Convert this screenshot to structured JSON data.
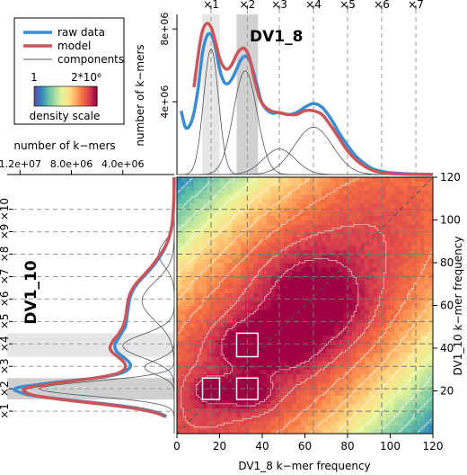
{
  "chart_data": {
    "type": "heatmap",
    "top_panel": {
      "type": "line",
      "title": "DV1_8",
      "ylabel": "number of k−mers",
      "x_range": [
        0,
        120
      ],
      "y_range": [
        0,
        8800000
      ],
      "y_tick_labels": [
        {
          "value": 4000000,
          "label": "4e+06"
        },
        {
          "value": 8000000,
          "label": "8e+06"
        }
      ],
      "multiplicity_labels": [
        {
          "x": 16,
          "label": "×1"
        },
        {
          "x": 33,
          "label": "×2"
        },
        {
          "x": 48,
          "label": "×3"
        },
        {
          "x": 64,
          "label": "×4"
        },
        {
          "x": 80,
          "label": "×5"
        },
        {
          "x": 96,
          "label": "×6"
        },
        {
          "x": 112,
          "label": "×7"
        }
      ],
      "shaded_bands": [
        [
          12,
          20
        ],
        [
          28,
          38
        ]
      ],
      "series": [
        {
          "name": "raw data",
          "color": "#3a8ed0",
          "x": [
            2,
            4,
            6,
            8,
            10,
            12,
            14,
            16,
            18,
            20,
            22,
            24,
            26,
            28,
            30,
            32,
            34,
            36,
            38,
            40,
            44,
            48,
            52,
            56,
            60,
            64,
            68,
            72,
            76,
            80,
            84,
            88,
            92,
            96,
            100,
            110,
            120
          ],
          "y": [
            3500000,
            2600000,
            2700000,
            3400000,
            4800000,
            6700000,
            7600000,
            7700000,
            7000000,
            5800000,
            5100000,
            5000000,
            5300000,
            5800000,
            6300000,
            6500000,
            6300000,
            5600000,
            4700000,
            3900000,
            3400000,
            3400000,
            3300000,
            3400000,
            3700000,
            3900000,
            3700000,
            3100000,
            2300000,
            1600000,
            1000000,
            600000,
            300000,
            180000,
            100000,
            30000,
            5000
          ]
        },
        {
          "name": "model",
          "color": "#c8575c",
          "x": [
            8,
            10,
            12,
            14,
            16,
            18,
            20,
            22,
            24,
            26,
            28,
            30,
            32,
            34,
            36,
            38,
            40,
            44,
            48,
            52,
            56,
            60,
            64,
            68,
            72,
            76,
            80,
            84,
            88,
            92,
            96,
            100,
            110,
            120
          ],
          "y": [
            4800000,
            6600000,
            7900000,
            8300000,
            8100000,
            7300000,
            6400000,
            5900000,
            5800000,
            6100000,
            6600000,
            6900000,
            6900000,
            6400000,
            5400000,
            4500000,
            3900000,
            3500000,
            3400000,
            3300000,
            3300000,
            3500000,
            3500000,
            3300000,
            2700000,
            2000000,
            1300000,
            800000,
            450000,
            220000,
            110000,
            50000,
            10000,
            2000
          ]
        },
        {
          "name": "components",
          "color": "#555555",
          "components": [
            {
              "mean": 16,
              "sd": 3.5,
              "peak": 6900000
            },
            {
              "mean": 32,
              "sd": 5.5,
              "peak": 5700000
            },
            {
              "mean": 48,
              "sd": 7.5,
              "peak": 1400000
            },
            {
              "mean": 64,
              "sd": 9,
              "peak": 2600000
            }
          ]
        }
      ]
    },
    "left_panel": {
      "type": "line",
      "title": "DV1_10",
      "xlabel": "number of k−mers",
      "y_range": [
        0,
        120
      ],
      "x_range_reversed": [
        0,
        13000000
      ],
      "x_tick_labels": [
        {
          "value": 12000000,
          "label": "1.2e+07"
        },
        {
          "value": 8000000,
          "label": "8.0e+06"
        },
        {
          "value": 4000000,
          "label": "4.0e+06"
        }
      ],
      "multiplicity_labels": [
        {
          "y": 10.5,
          "label": "×1"
        },
        {
          "y": 21,
          "label": "×2"
        },
        {
          "y": 31.5,
          "label": "×3"
        },
        {
          "y": 42,
          "label": "×4"
        },
        {
          "y": 52.5,
          "label": "×5"
        },
        {
          "y": 63,
          "label": "×6"
        },
        {
          "y": 73.5,
          "label": "×7"
        },
        {
          "y": 84,
          "label": "×8"
        },
        {
          "y": 94.5,
          "label": "×9"
        },
        {
          "y": 105,
          "label": "×10"
        }
      ],
      "shaded_bands": [
        [
          16,
          26
        ],
        [
          36,
          47
        ]
      ],
      "series": [
        {
          "name": "raw data",
          "color": "#3a8ed0",
          "y": [
            8,
            10,
            12,
            14,
            16,
            18,
            20,
            21,
            22,
            24,
            26,
            28,
            30,
            32,
            34,
            36,
            38,
            40,
            42,
            44,
            46,
            48,
            50,
            54,
            58,
            62,
            66,
            70,
            74,
            78,
            82,
            86,
            90,
            95,
            100,
            110,
            120
          ],
          "x": [
            600000,
            1400000,
            3000000,
            5500000,
            8600000,
            11200000,
            12300000,
            12400000,
            11800000,
            9200000,
            6200000,
            4300000,
            3600000,
            3400000,
            3600000,
            4000000,
            4400000,
            4600000,
            4600000,
            4400000,
            4200000,
            4000000,
            3800000,
            3700000,
            3600000,
            3500000,
            3300000,
            2900000,
            2300000,
            1700000,
            1200000,
            800000,
            500000,
            250000,
            120000,
            30000,
            5000
          ]
        },
        {
          "name": "model",
          "color": "#c8575c",
          "y": [
            8,
            10,
            12,
            14,
            16,
            18,
            20,
            21,
            22,
            24,
            26,
            28,
            30,
            32,
            34,
            36,
            38,
            40,
            42,
            44,
            46,
            48,
            50,
            54,
            58,
            62,
            66,
            70,
            74,
            78,
            82,
            86,
            90,
            95,
            100,
            110,
            120
          ],
          "x": [
            700000,
            1600000,
            3300000,
            5900000,
            8800000,
            11000000,
            11700000,
            11600000,
            11000000,
            8800000,
            6200000,
            4500000,
            3900000,
            3800000,
            4000000,
            4400000,
            4800000,
            5000000,
            4900000,
            4700000,
            4400000,
            4200000,
            4000000,
            3800000,
            3700000,
            3600000,
            3400000,
            3000000,
            2400000,
            1800000,
            1300000,
            850000,
            500000,
            260000,
            120000,
            30000,
            5000
          ]
        },
        {
          "name": "components",
          "color": "#555555",
          "components": [
            {
              "mean": 21,
              "sd": 3.5,
              "peak": 10500000
            },
            {
              "mean": 41,
              "sd": 5.5,
              "peak": 4000000
            },
            {
              "mean": 31,
              "sd": 3.5,
              "peak": 2300000
            },
            {
              "mean": 62,
              "sd": 9,
              "peak": 2500000
            },
            {
              "mean": 84,
              "sd": 6,
              "peak": 1200000
            }
          ]
        }
      ]
    },
    "heatmap_panel": {
      "xlabel": "DV1_8 k−mer frequency",
      "ylabel": "DV1_10 k−mer frequency",
      "x_range": [
        0,
        120
      ],
      "y_range": [
        0,
        120
      ],
      "x_ticks": [
        0,
        20,
        40,
        60,
        80,
        100,
        120
      ],
      "y_ticks": [
        20,
        40,
        60,
        80,
        100,
        120
      ],
      "x_grid": [
        16,
        33,
        48,
        64,
        80,
        96,
        112
      ],
      "y_grid": [
        10.5,
        21,
        31.5,
        42,
        52.5,
        63,
        73.5,
        84,
        94.5,
        105
      ],
      "peak_boxes": [
        {
          "x": [
            12,
            20
          ],
          "y": [
            16,
            26
          ]
        },
        {
          "x": [
            28,
            38
          ],
          "y": [
            16,
            26
          ]
        },
        {
          "x": [
            28,
            38
          ],
          "y": [
            36,
            47
          ]
        }
      ],
      "density_blobs": [
        {
          "cx": 16,
          "cy": 20,
          "sx": 5,
          "sy": 4
        },
        {
          "cx": 33,
          "cy": 20,
          "sx": 7,
          "sy": 5
        },
        {
          "cx": 33,
          "cy": 41,
          "sx": 8,
          "sy": 6
        },
        {
          "cx": 65,
          "cy": 62,
          "sx": 13,
          "sy": 12
        },
        {
          "cx": 50,
          "cy": 45,
          "sx": 10,
          "sy": 9
        }
      ]
    },
    "legend": {
      "placement": "top-left",
      "entries": [
        {
          "label": "raw data",
          "color": "#3a8ed0"
        },
        {
          "label": "model",
          "color": "#c8575c"
        },
        {
          "label": "components",
          "color": "#555555"
        }
      ],
      "colorbar": {
        "min_label": "1",
        "max_label": "2*10⁶",
        "label": "density scale",
        "colors": [
          "#5e4fa2",
          "#3288bd",
          "#66c2a5",
          "#abdda4",
          "#e6f598",
          "#fee08b",
          "#fdae61",
          "#f46d43",
          "#d53e4f",
          "#9e0142"
        ]
      }
    }
  }
}
